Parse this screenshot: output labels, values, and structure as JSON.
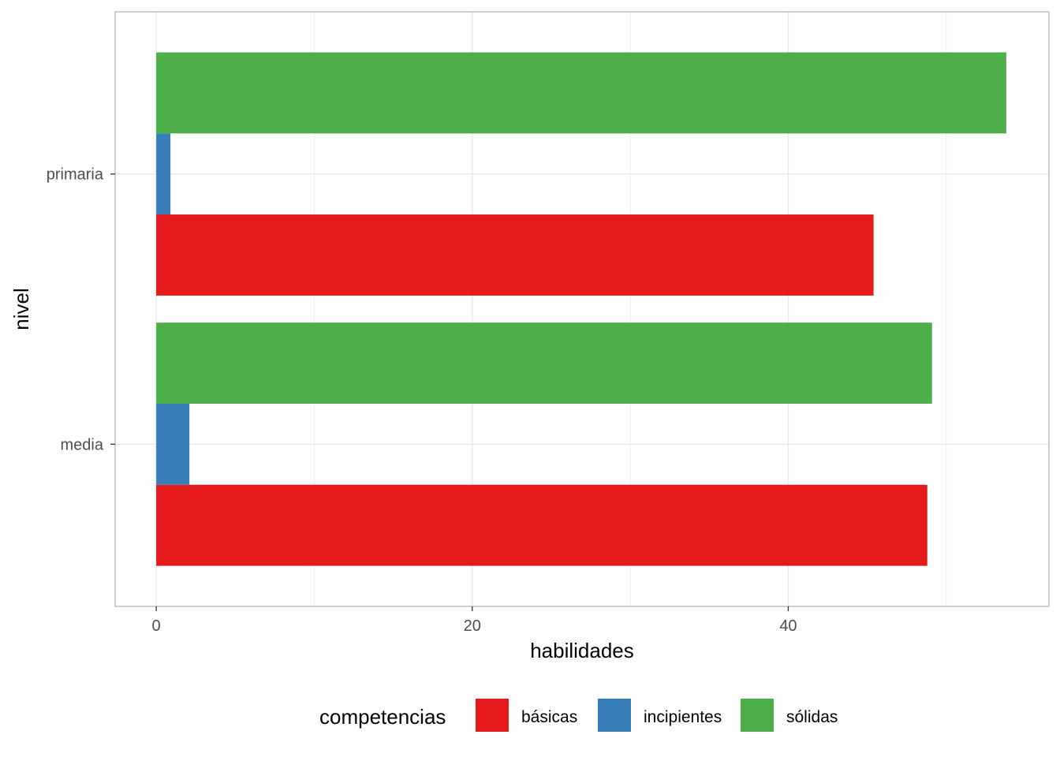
{
  "chart_data": {
    "type": "bar",
    "orientation": "horizontal",
    "categories": [
      "primaria",
      "media"
    ],
    "series": [
      {
        "name": "básicas",
        "color": "#e41a1c",
        "values": [
          45.4,
          48.8
        ]
      },
      {
        "name": "incipientes",
        "color": "#377eb8",
        "values": [
          0.9,
          2.1
        ]
      },
      {
        "name": "sólidas",
        "color": "#4daf4a",
        "values": [
          53.8,
          49.1
        ]
      }
    ],
    "xlabel": "habilidades",
    "ylabel": "nivel",
    "xlim": [
      -2.6,
      56.5
    ],
    "xticks": [
      0,
      20,
      40
    ],
    "xtick_labels": [
      "0",
      "20",
      "40"
    ],
    "grid": true,
    "legend": {
      "title": "competencias",
      "position": "bottom"
    }
  }
}
